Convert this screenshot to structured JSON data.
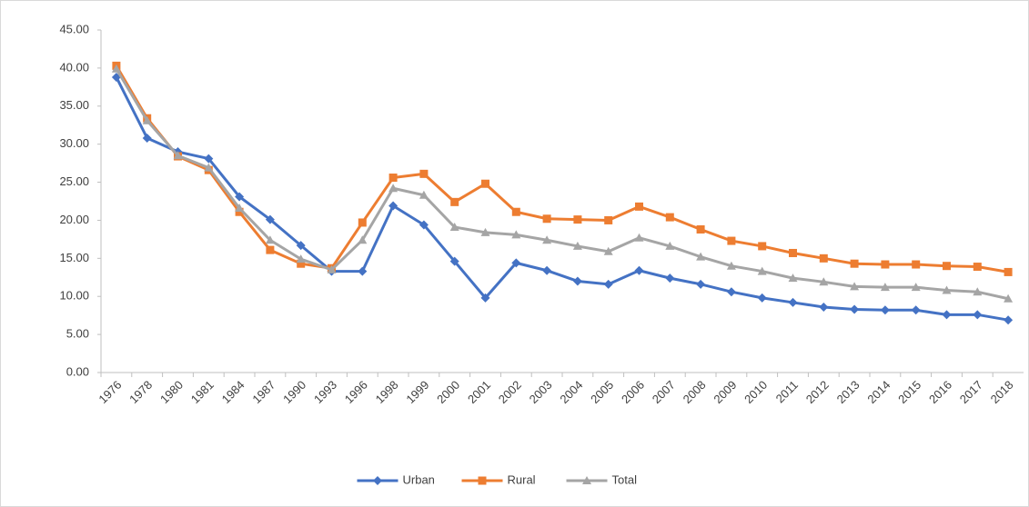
{
  "chart_data": {
    "type": "line",
    "categories": [
      "1976",
      "1978",
      "1980",
      "1981",
      "1984",
      "1987",
      "1990",
      "1993",
      "1996",
      "1998",
      "1999",
      "2000",
      "2001",
      "2002",
      "2003",
      "2004",
      "2005",
      "2006",
      "2007",
      "2008",
      "2009",
      "2010",
      "2011",
      "2012",
      "2013",
      "2014",
      "2015",
      "2016",
      "2017",
      "2018"
    ],
    "series": [
      {
        "name": "Urban",
        "color": "#4472c4",
        "marker": "diamond",
        "values": [
          38.8,
          30.8,
          29.0,
          28.1,
          23.1,
          20.1,
          16.7,
          13.3,
          13.3,
          21.9,
          19.4,
          14.6,
          9.8,
          14.4,
          13.4,
          12.0,
          11.6,
          13.4,
          12.4,
          11.6,
          10.6,
          9.8,
          9.2,
          8.6,
          8.3,
          8.2,
          8.2,
          7.6,
          7.6,
          6.9
        ]
      },
      {
        "name": "Rural",
        "color": "#ed7d31",
        "marker": "square",
        "values": [
          40.3,
          33.4,
          28.4,
          26.6,
          21.1,
          16.1,
          14.3,
          13.7,
          19.7,
          25.6,
          26.1,
          22.4,
          24.8,
          21.1,
          20.2,
          20.1,
          20.0,
          21.8,
          20.4,
          18.8,
          17.3,
          16.6,
          15.7,
          15.0,
          14.3,
          14.2,
          14.2,
          14.0,
          13.9,
          13.2
        ]
      },
      {
        "name": "Total",
        "color": "#a5a5a5",
        "marker": "triangle",
        "values": [
          39.9,
          33.1,
          28.5,
          26.9,
          21.6,
          17.4,
          14.9,
          13.5,
          17.4,
          24.2,
          23.3,
          19.1,
          18.4,
          18.1,
          17.4,
          16.6,
          15.9,
          17.7,
          16.6,
          15.2,
          14.0,
          13.3,
          12.4,
          11.9,
          11.3,
          11.2,
          11.2,
          10.8,
          10.6,
          9.7
        ]
      }
    ],
    "ylim": [
      0,
      45
    ],
    "yticks": [
      {
        "value": 0,
        "label": "0.00"
      },
      {
        "value": 5,
        "label": "5.00"
      },
      {
        "value": 10,
        "label": "10.00"
      },
      {
        "value": 15,
        "label": "15.00"
      },
      {
        "value": 20,
        "label": "20.00"
      },
      {
        "value": 25,
        "label": "25.00"
      },
      {
        "value": 30,
        "label": "30.00"
      },
      {
        "value": 35,
        "label": "35.00"
      },
      {
        "value": 40,
        "label": "40.00"
      },
      {
        "value": 45,
        "label": "45.00"
      }
    ],
    "grid": false,
    "legend": "bottom"
  }
}
